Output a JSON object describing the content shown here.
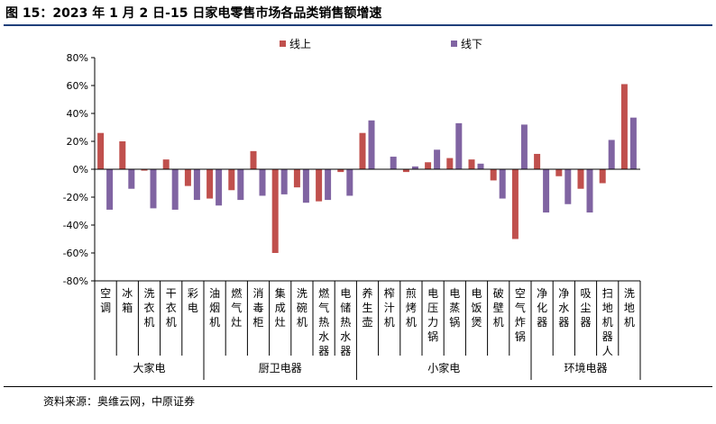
{
  "title": "图 15：2023 年 1 月 2 日-15 日家电零售市场各品类销售额增速",
  "source": "资料来源：奥维云网，中原证券",
  "chart_data": {
    "type": "bar",
    "ylim": [
      -80,
      80
    ],
    "yticks": [
      80,
      60,
      40,
      20,
      0,
      -20,
      -40,
      -60,
      -80
    ],
    "ytick_labels": [
      "80%",
      "60%",
      "40%",
      "20%",
      "0%",
      "-20%",
      "-40%",
      "-60%",
      "-80%"
    ],
    "categories": [
      "空调",
      "冰箱",
      "洗衣机",
      "干衣机",
      "彩电",
      "油烟机",
      "燃气灶",
      "消毒柜",
      "集成灶",
      "洗碗机",
      "燃气热水器",
      "电储热水器",
      "养生壶",
      "榨汁机",
      "煎烤机",
      "电压力锅",
      "电蒸锅",
      "电饭煲",
      "破壁机",
      "空气炸锅",
      "净化器",
      "净水器",
      "吸尘器",
      "扫地机器人",
      "洗地机"
    ],
    "groups": [
      {
        "name": "大家电",
        "count": 5
      },
      {
        "name": "厨卫电器",
        "count": 7
      },
      {
        "name": "小家电",
        "count": 8
      },
      {
        "name": "环境电器",
        "count": 5
      }
    ],
    "series": [
      {
        "name": "线上",
        "color": "#c0504d",
        "values": [
          26,
          20,
          -1,
          7,
          -12,
          -21,
          -15,
          13,
          -60,
          -13,
          -23,
          -2,
          26,
          0,
          -2,
          5,
          8,
          7,
          -8,
          -50,
          11,
          -5,
          -14,
          -10,
          61
        ]
      },
      {
        "name": "线下",
        "color": "#8064a2",
        "values": [
          -29,
          -14,
          -28,
          -29,
          -22,
          -26,
          -22,
          -19,
          -18,
          -24,
          -22,
          -19,
          35,
          9,
          2,
          14,
          33,
          4,
          -21,
          32,
          -31,
          -25,
          -31,
          21,
          37
        ]
      }
    ]
  }
}
